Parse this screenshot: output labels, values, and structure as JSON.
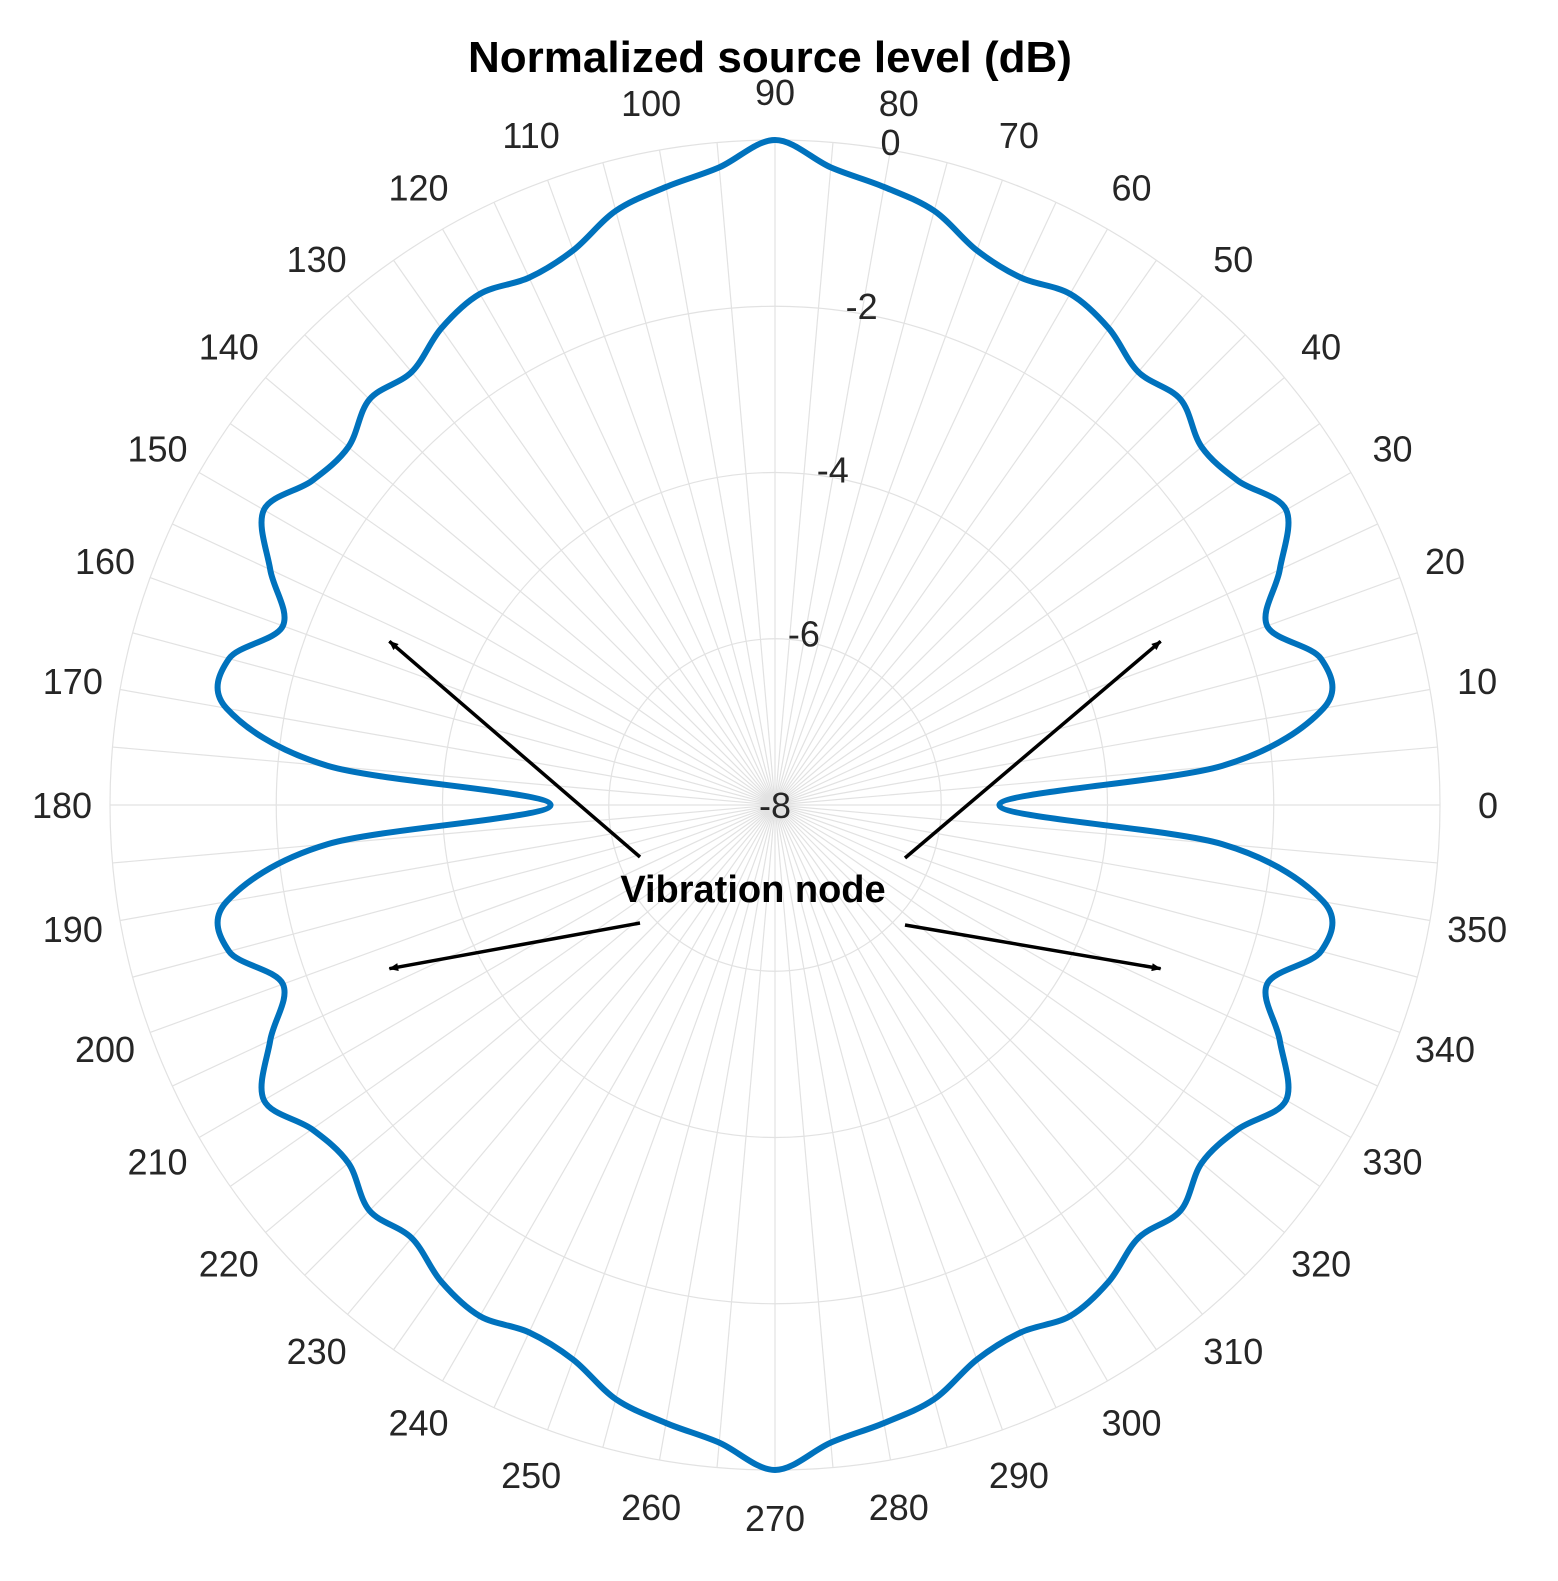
{
  "chart_data": {
    "type": "polar-line",
    "title": "Normalized source level (dB)",
    "theta_ticks": [
      "0",
      "10",
      "20",
      "30",
      "40",
      "50",
      "60",
      "70",
      "80",
      "90",
      "100",
      "110",
      "120",
      "130",
      "140",
      "150",
      "160",
      "170",
      "180",
      "190",
      "200",
      "210",
      "220",
      "230",
      "240",
      "250",
      "260",
      "270",
      "280",
      "290",
      "300",
      "310",
      "320",
      "330",
      "340",
      "350"
    ],
    "theta_tick_values": [
      0,
      10,
      20,
      30,
      40,
      50,
      60,
      70,
      80,
      90,
      100,
      110,
      120,
      130,
      140,
      150,
      160,
      170,
      180,
      190,
      200,
      210,
      220,
      230,
      240,
      250,
      260,
      270,
      280,
      290,
      300,
      310,
      320,
      330,
      340,
      350
    ],
    "r_ticks": [
      "-8",
      "-6",
      "-4",
      "-2",
      "0"
    ],
    "r_tick_values": [
      -8,
      -6,
      -4,
      -2,
      0
    ],
    "rlim": [
      -8,
      0
    ],
    "theta_grid_step_deg": 5,
    "grid": true,
    "series": [
      {
        "color": "#0072BD",
        "theta_deg": [
          0,
          5,
          10,
          15,
          20,
          25,
          30,
          35,
          40,
          45,
          50,
          55,
          60,
          65,
          70,
          75,
          80,
          85,
          90,
          95,
          100,
          105,
          110,
          115,
          120,
          125,
          130,
          135,
          140,
          145,
          150,
          155,
          160,
          165,
          170,
          175,
          180,
          185,
          190,
          195,
          200,
          205,
          210,
          215,
          220,
          225,
          230,
          235,
          240,
          245,
          250,
          255,
          260,
          265,
          270,
          275,
          280,
          285,
          290,
          295,
          300,
          305,
          310,
          315,
          320,
          325,
          330,
          335,
          340,
          345,
          350,
          355,
          360
        ],
        "level_db": [
          -5.3,
          -2.6,
          -1.3,
          -1.2,
          -1.7,
          -1.3,
          -0.9,
          -1.2,
          -1.3,
          -1.1,
          -1.2,
          -1.0,
          -0.9,
          -1.0,
          -0.9,
          -0.6,
          -0.45,
          -0.3,
          0.0,
          -0.3,
          -0.45,
          -0.6,
          -0.9,
          -1.0,
          -0.9,
          -1.0,
          -1.2,
          -1.1,
          -1.3,
          -1.2,
          -0.9,
          -1.3,
          -1.7,
          -1.2,
          -1.3,
          -2.6,
          -5.3,
          -2.6,
          -1.3,
          -1.2,
          -1.7,
          -1.3,
          -0.9,
          -1.2,
          -1.3,
          -1.1,
          -1.2,
          -1.0,
          -0.9,
          -1.0,
          -0.9,
          -0.6,
          -0.45,
          -0.3,
          0.0,
          -0.3,
          -0.45,
          -0.6,
          -0.9,
          -1.0,
          -0.9,
          -1.0,
          -1.2,
          -1.1,
          -1.3,
          -1.2,
          -0.9,
          -1.3,
          -1.7,
          -1.2,
          -1.3,
          -2.6,
          -5.3
        ]
      }
    ],
    "annotations": [
      {
        "text": "Vibration node",
        "arrows_to_theta_deg": [
          23,
          157,
          203,
          337
        ]
      }
    ]
  }
}
